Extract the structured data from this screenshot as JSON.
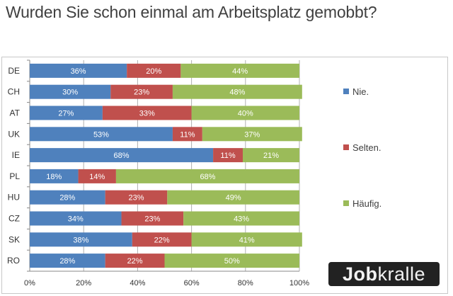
{
  "chart_data": {
    "type": "bar",
    "orientation": "horizontal",
    "stacked": "percent",
    "title": "Wurden Sie schon einmal am Arbeitsplatz gemobbt?",
    "xlabel": "",
    "ylabel": "",
    "categories": [
      "DE",
      "CH",
      "AT",
      "UK",
      "IE",
      "PL",
      "HU",
      "CZ",
      "SK",
      "RO"
    ],
    "series": [
      {
        "name": "Nie.",
        "color": "#4f81bd",
        "values": [
          36,
          30,
          27,
          53,
          68,
          18,
          28,
          34,
          38,
          28
        ]
      },
      {
        "name": "Selten.",
        "color": "#c0504d",
        "values": [
          20,
          23,
          33,
          11,
          11,
          14,
          23,
          23,
          22,
          22
        ]
      },
      {
        "name": "Häufig.",
        "color": "#9bbb59",
        "values": [
          44,
          48,
          40,
          37,
          21,
          68,
          49,
          43,
          41,
          50
        ]
      }
    ],
    "xlim": [
      0,
      100
    ],
    "x_ticks": [
      "0%",
      "20%",
      "40%",
      "60%",
      "80%",
      "100%"
    ],
    "grid": true,
    "legend": "right"
  },
  "brand": {
    "logo_bold": "Job",
    "logo_regular": "kralle"
  }
}
